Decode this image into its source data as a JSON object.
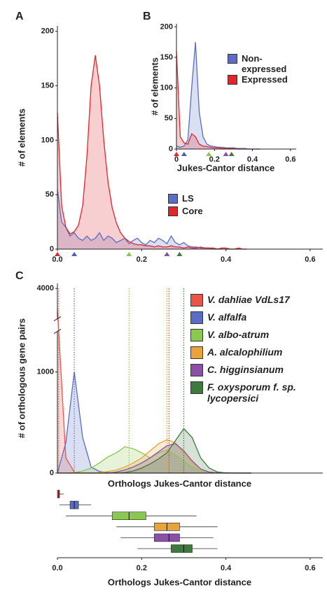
{
  "chart_data": [
    {
      "type": "area",
      "panel": "A",
      "ylabel": "# of elements",
      "xlim": [
        0,
        0.63
      ],
      "ylim": [
        0,
        205
      ],
      "xticks": [
        {
          "value": 0,
          "label": "0.0"
        },
        0.2,
        0.4,
        0.6
      ],
      "yticks": [
        0,
        50,
        100,
        150,
        200
      ],
      "legend": "lower right",
      "x": [
        0,
        0.01,
        0.02,
        0.03,
        0.04,
        0.05,
        0.06,
        0.07,
        0.08,
        0.09,
        0.1,
        0.11,
        0.12,
        0.13,
        0.14,
        0.15,
        0.16,
        0.17,
        0.18,
        0.19,
        0.2,
        0.21,
        0.22,
        0.23,
        0.24,
        0.25,
        0.26,
        0.27,
        0.28,
        0.29,
        0.3,
        0.31,
        0.32,
        0.33,
        0.34,
        0.35,
        0.36,
        0.37,
        0.38,
        0.39,
        0.4,
        0.41,
        0.42,
        0.43,
        0.44,
        0.45
      ],
      "series": [
        {
          "name": "LS",
          "color": "#5b6cc4",
          "values": [
            55,
            25,
            20,
            12,
            15,
            10,
            8,
            12,
            8,
            10,
            15,
            8,
            12,
            10,
            6,
            8,
            10,
            5,
            8,
            10,
            6,
            4,
            8,
            6,
            10,
            8,
            5,
            12,
            6,
            4,
            6,
            3,
            2,
            2,
            1,
            1,
            1,
            0,
            0,
            0,
            0,
            0,
            0,
            0,
            0,
            0
          ]
        },
        {
          "name": "Core",
          "color": "#e0262b",
          "values": [
            125,
            40,
            20,
            14,
            16,
            22,
            40,
            85,
            150,
            178,
            150,
            100,
            62,
            38,
            24,
            15,
            10,
            7,
            5,
            4,
            4,
            3,
            3,
            2,
            3,
            2,
            2,
            3,
            2,
            2,
            1,
            2,
            1,
            1,
            2,
            1,
            1,
            1,
            0,
            1,
            1,
            0,
            0,
            1,
            0,
            0
          ]
        }
      ],
      "markers": [
        {
          "x": 0,
          "color": "#e0262b"
        },
        {
          "x": 0.04,
          "color": "#4a5db8"
        },
        {
          "x": 0.17,
          "color": "#8cc751"
        },
        {
          "x": 0.26,
          "color": "#8a4fa6"
        },
        {
          "x": 0.29,
          "color": "#3e7a3e"
        }
      ]
    },
    {
      "type": "area",
      "panel": "B",
      "ylabel": "# of elements",
      "xlabel": "Jukes-Cantor distance",
      "xlim": [
        0,
        0.63
      ],
      "ylim": [
        0,
        205
      ],
      "xticks": [
        0,
        0.2,
        0.4,
        0.6
      ],
      "yticks": [
        0,
        50,
        100,
        150,
        200
      ],
      "legend": "upper right",
      "x": [
        0,
        0.02,
        0.04,
        0.06,
        0.08,
        0.1,
        0.12,
        0.14,
        0.16,
        0.18,
        0.2,
        0.22,
        0.24,
        0.26,
        0.28,
        0.3,
        0.32,
        0.34,
        0.36,
        0.38,
        0.4,
        0.42,
        0.44
      ],
      "series": [
        {
          "name": "Non-expressed",
          "color": "#5b6cc4",
          "values": [
            5,
            3,
            5,
            15,
            100,
            175,
            60,
            20,
            8,
            5,
            4,
            3,
            3,
            2,
            2,
            2,
            1,
            1,
            1,
            0,
            0,
            0,
            0
          ]
        },
        {
          "name": "Expressed",
          "color": "#e0262b",
          "values": [
            160,
            20,
            10,
            8,
            25,
            20,
            8,
            5,
            4,
            3,
            2,
            2,
            1,
            1,
            1,
            1,
            0,
            0,
            0,
            0,
            0,
            0,
            0
          ]
        }
      ],
      "markers": [
        {
          "x": 0,
          "color": "#e0262b"
        },
        {
          "x": 0.04,
          "color": "#4a5db8"
        },
        {
          "x": 0.17,
          "color": "#8cc751"
        },
        {
          "x": 0.26,
          "color": "#8a4fa6"
        },
        {
          "x": 0.29,
          "color": "#3e7a3e"
        }
      ]
    },
    {
      "type": "area",
      "panel": "C",
      "ylabel": "# of orthologous gene pairs",
      "xlabel": "Orthologs Jukes-Cantor distance",
      "xlim": [
        0,
        0.63
      ],
      "ylim": [
        0,
        4050
      ],
      "ybreak": [
        1400,
        3700
      ],
      "yticks": [
        0,
        1000,
        4000
      ],
      "legend": "upper right",
      "x": [
        0,
        0.02,
        0.04,
        0.06,
        0.08,
        0.1,
        0.12,
        0.14,
        0.16,
        0.18,
        0.2,
        0.22,
        0.24,
        0.26,
        0.28,
        0.3,
        0.32,
        0.34,
        0.36,
        0.38,
        0.4,
        0.42,
        0.44,
        0.46
      ],
      "series": [
        {
          "name": "V. dahliae VdLs17",
          "color": "#e8564a",
          "median": 0.003,
          "values": [
            3800,
            150,
            10,
            0,
            0,
            0,
            0,
            0,
            0,
            0,
            0,
            0,
            0,
            0,
            0,
            0,
            0,
            0,
            0,
            0,
            0,
            0,
            0,
            0
          ]
        },
        {
          "name": "V. alfalfa",
          "color": "#5b6cc4",
          "median": 0.04,
          "values": [
            0,
            300,
            1000,
            350,
            60,
            15,
            5,
            0,
            0,
            0,
            0,
            0,
            0,
            0,
            0,
            0,
            0,
            0,
            0,
            0,
            0,
            0,
            0,
            0
          ]
        },
        {
          "name": "V. albo-atrum",
          "color": "#8cc751",
          "median": 0.17,
          "values": [
            0,
            0,
            5,
            20,
            50,
            100,
            160,
            200,
            260,
            240,
            200,
            150,
            200,
            230,
            180,
            120,
            60,
            20,
            5,
            0,
            0,
            0,
            0,
            0
          ]
        },
        {
          "name": "A. alcalophilium",
          "color": "#e8a33a",
          "median": 0.26,
          "values": [
            0,
            0,
            0,
            0,
            0,
            5,
            15,
            30,
            60,
            100,
            150,
            220,
            290,
            330,
            300,
            200,
            100,
            40,
            10,
            2,
            0,
            0,
            0,
            0
          ]
        },
        {
          "name": "C. higginsianum",
          "color": "#8a4fa6",
          "median": 0.265,
          "values": [
            0,
            0,
            0,
            0,
            0,
            0,
            0,
            10,
            30,
            60,
            100,
            150,
            210,
            270,
            290,
            220,
            120,
            40,
            10,
            2,
            0,
            0,
            0,
            0
          ]
        },
        {
          "name": "F. oxysporum f. sp. lycopersici",
          "color": "#3e7a3e",
          "median": 0.3,
          "values": [
            0,
            0,
            0,
            0,
            0,
            0,
            0,
            0,
            5,
            20,
            50,
            90,
            140,
            200,
            320,
            440,
            350,
            150,
            50,
            10,
            2,
            0,
            0,
            0
          ]
        }
      ]
    },
    {
      "type": "box",
      "xlabel": "Orthologs Jukes-Cantor distance",
      "xlim": [
        0,
        0.63
      ],
      "xticks": [
        {
          "value": 0,
          "label": "0.0"
        },
        0.2,
        0.4,
        0.6
      ],
      "series": [
        {
          "color": "#e8564a",
          "whislo": 0,
          "q1": 0,
          "med": 0.003,
          "q3": 0.005,
          "whishi": 0.015
        },
        {
          "color": "#5b6cc4",
          "whislo": 0.005,
          "q1": 0.03,
          "med": 0.04,
          "q3": 0.05,
          "whishi": 0.08
        },
        {
          "color": "#8cc751",
          "whislo": 0.02,
          "q1": 0.13,
          "med": 0.17,
          "q3": 0.21,
          "whishi": 0.33
        },
        {
          "color": "#e8a33a",
          "whislo": 0.14,
          "q1": 0.23,
          "med": 0.26,
          "q3": 0.29,
          "whishi": 0.38
        },
        {
          "color": "#8a4fa6",
          "whislo": 0.15,
          "q1": 0.23,
          "med": 0.265,
          "q3": 0.29,
          "whishi": 0.37
        },
        {
          "color": "#3e7a3e",
          "whislo": 0.19,
          "q1": 0.27,
          "med": 0.3,
          "q3": 0.32,
          "whishi": 0.38
        }
      ]
    }
  ]
}
